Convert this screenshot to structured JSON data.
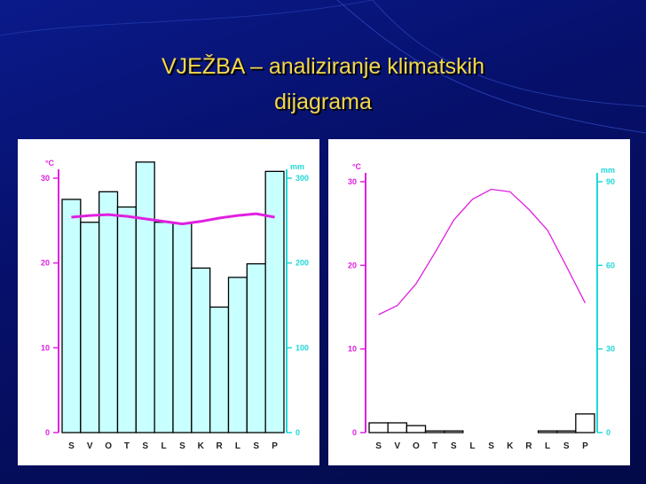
{
  "slide_title": [
    "VJEŽBA – analiziranje klimatskih",
    "dijagrama"
  ],
  "chart_data": [
    {
      "type": "combo",
      "categories": [
        "S",
        "V",
        "O",
        "T",
        "S",
        "L",
        "S",
        "K",
        "R",
        "L",
        "S",
        "P"
      ],
      "y_label": "°C",
      "y2_label": "mm",
      "ylim": [
        0,
        30
      ],
      "yticks": [
        0,
        10,
        20,
        30
      ],
      "y2lim": [
        0,
        300
      ],
      "y2ticks": [
        0,
        100,
        200,
        300
      ],
      "y_color": "#e020e0",
      "y2_color": "#20d8d8",
      "series": [
        {
          "type": "bar",
          "axis": "y2",
          "color": "#c8ffff",
          "values": [
            275,
            248,
            284,
            266,
            319,
            248,
            247,
            194,
            148,
            183,
            199,
            308
          ]
        },
        {
          "type": "line",
          "axis": "y",
          "color": "#e020e0",
          "values": [
            25.4,
            25.6,
            25.7,
            25.5,
            25.2,
            24.9,
            24.6,
            24.9,
            25.3,
            25.6,
            25.8,
            25.4
          ]
        }
      ]
    },
    {
      "type": "combo",
      "categories": [
        "S",
        "V",
        "O",
        "T",
        "S",
        "L",
        "S",
        "K",
        "R",
        "L",
        "S",
        "P"
      ],
      "y_label": "°C",
      "y2_label": "mm",
      "ylim": [
        0,
        30
      ],
      "yticks": [
        0,
        10,
        20,
        30
      ],
      "y2lim": [
        0,
        90
      ],
      "y2ticks": [
        0,
        30,
        60,
        90
      ],
      "y_color": "#e020e0",
      "y2_color": "#20d8d8",
      "series": [
        {
          "type": "bar",
          "axis": "y2",
          "color": "#ffffff",
          "values": [
            3.5,
            3.5,
            2.5,
            0.6,
            0.6,
            0,
            0,
            0,
            0,
            0.6,
            0.6,
            6.7
          ]
        },
        {
          "type": "line",
          "axis": "y",
          "color": "#e020e0",
          "values": [
            14.1,
            15.2,
            17.8,
            21.5,
            25.4,
            27.9,
            29.1,
            28.8,
            26.7,
            24.2,
            19.9,
            15.5
          ]
        }
      ]
    }
  ]
}
